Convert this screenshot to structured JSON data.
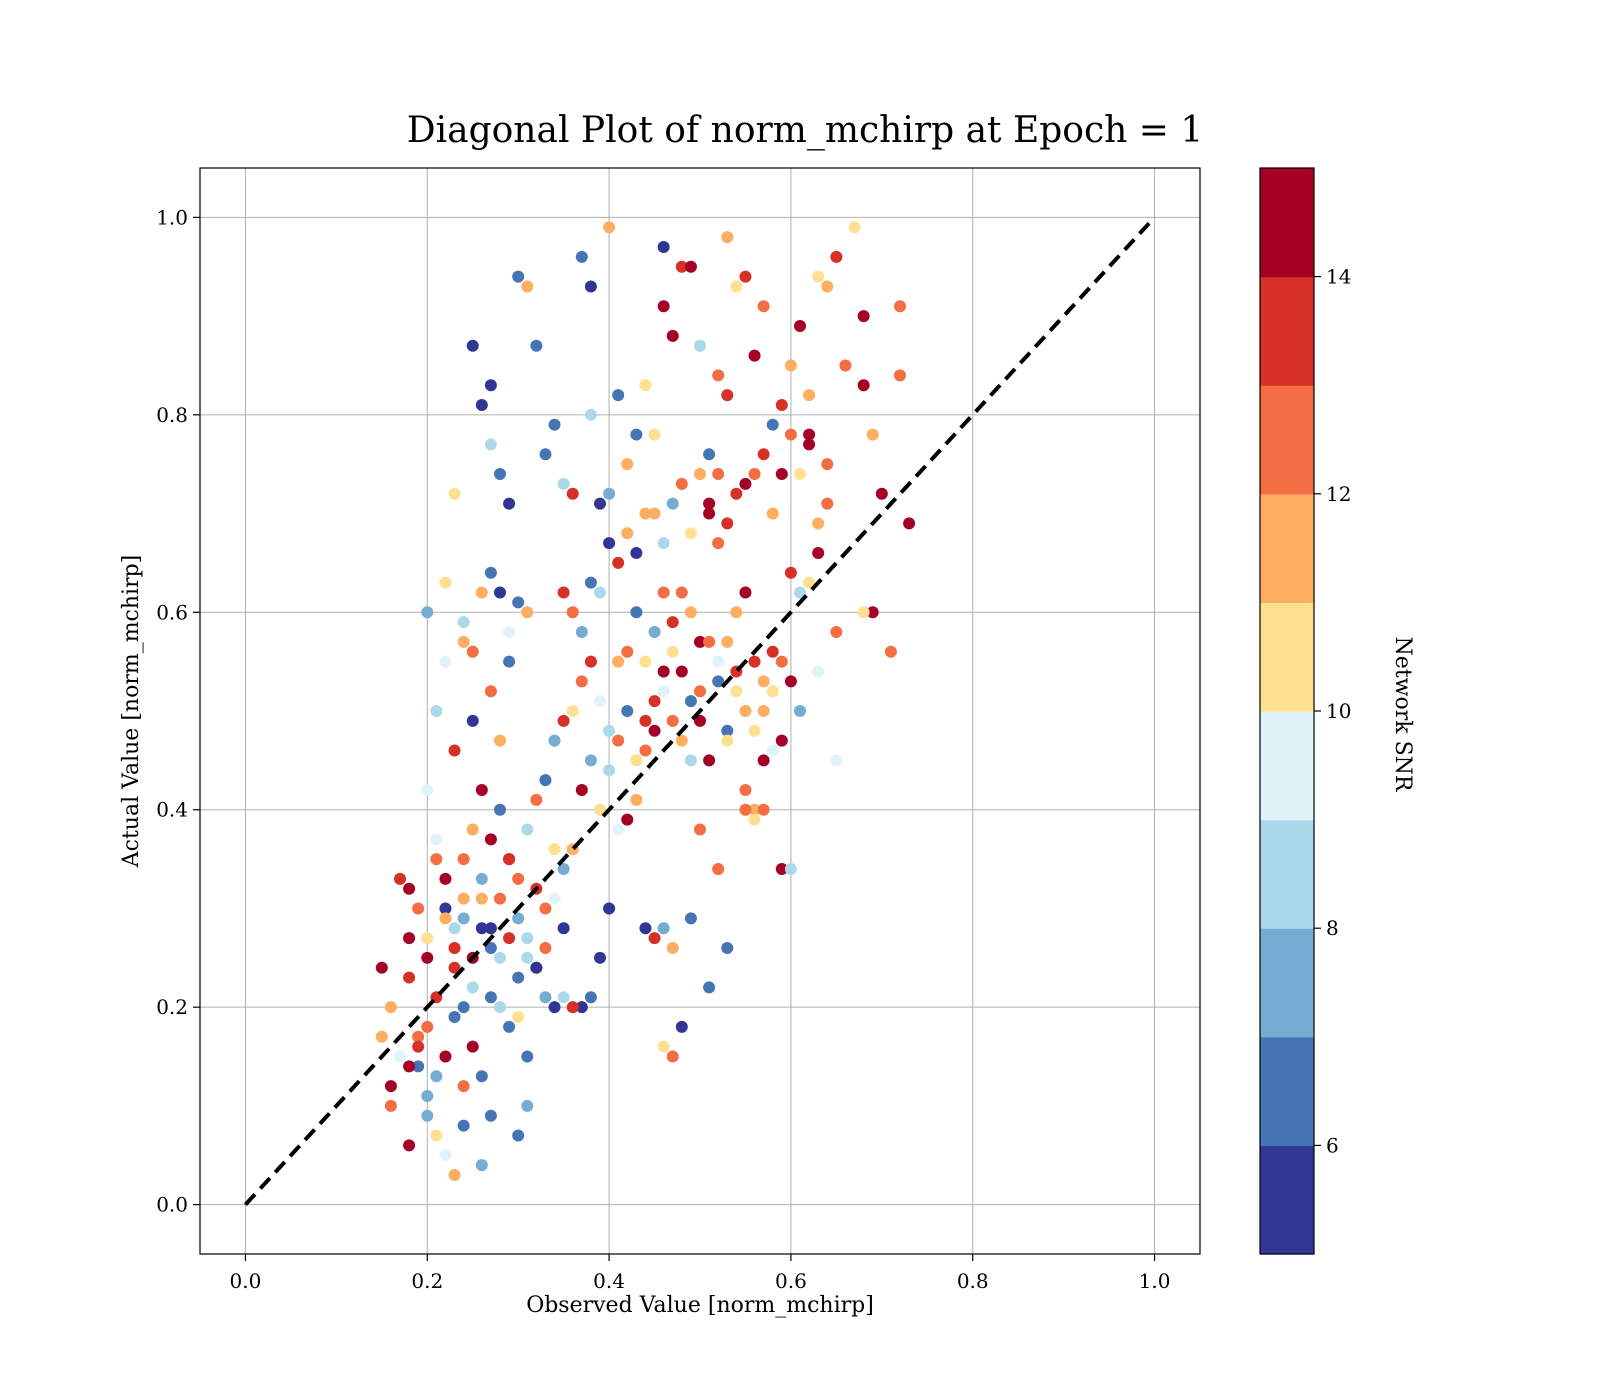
{
  "chart_data": {
    "type": "scatter",
    "title": "Diagonal Plot of norm_mchirp at Epoch = 1",
    "xlabel": "Observed Value [norm_mchirp]",
    "ylabel": "Actual Value [norm_mchirp]",
    "xlim": [
      -0.05,
      1.05
    ],
    "ylim": [
      -0.05,
      1.05
    ],
    "xticks": [
      "0.0",
      "0.2",
      "0.4",
      "0.6",
      "0.8",
      "1.0"
    ],
    "yticks": [
      "0.0",
      "0.2",
      "0.4",
      "0.6",
      "0.8",
      "1.0"
    ],
    "grid": true,
    "reference_line": {
      "style": "dashed",
      "color": "#000000",
      "from": [
        0,
        0
      ],
      "to": [
        1,
        1
      ]
    },
    "colorbar": {
      "label": "Network SNR",
      "colormap": "RdYlBu_r",
      "range": [
        5,
        15
      ],
      "ticks": [
        "6",
        "8",
        "10",
        "12",
        "14"
      ],
      "colors": [
        "#313695",
        "#4575b4",
        "#74add1",
        "#abd9e9",
        "#e0f3f8",
        "#fee090",
        "#fdae61",
        "#f46d43",
        "#d73027",
        "#a50026"
      ]
    },
    "points": [
      [
        0.15,
        0.24,
        14.5
      ],
      [
        0.16,
        0.12,
        14.2
      ],
      [
        0.17,
        0.33,
        13.5
      ],
      [
        0.18,
        0.27,
        14.8
      ],
      [
        0.19,
        0.17,
        12.5
      ],
      [
        0.2,
        0.25,
        14.0
      ],
      [
        0.21,
        0.21,
        13.2
      ],
      [
        0.22,
        0.3,
        5.5
      ],
      [
        0.23,
        0.28,
        8.0
      ],
      [
        0.24,
        0.2,
        6.2
      ],
      [
        0.16,
        0.2,
        11.5
      ],
      [
        0.17,
        0.15,
        10.5
      ],
      [
        0.18,
        0.23,
        13.8
      ],
      [
        0.19,
        0.14,
        6.5
      ],
      [
        0.2,
        0.18,
        12.0
      ],
      [
        0.21,
        0.37,
        9.5
      ],
      [
        0.22,
        0.33,
        14.5
      ],
      [
        0.23,
        0.26,
        13.0
      ],
      [
        0.24,
        0.31,
        11.0
      ],
      [
        0.25,
        0.22,
        8.5
      ],
      [
        0.26,
        0.28,
        5.0
      ],
      [
        0.27,
        0.26,
        6.8
      ],
      [
        0.28,
        0.31,
        12.2
      ],
      [
        0.29,
        0.35,
        5.2
      ],
      [
        0.3,
        0.29,
        7.2
      ],
      [
        0.31,
        0.25,
        8.8
      ],
      [
        0.32,
        0.24,
        14.2
      ],
      [
        0.33,
        0.3,
        12.5
      ],
      [
        0.34,
        0.36,
        10.2
      ],
      [
        0.35,
        0.21,
        8.2
      ],
      [
        0.18,
        0.06,
        14.9
      ],
      [
        0.2,
        0.09,
        7.0
      ],
      [
        0.21,
        0.07,
        10.2
      ],
      [
        0.22,
        0.05,
        9.0
      ],
      [
        0.23,
        0.03,
        11.8
      ],
      [
        0.24,
        0.08,
        6.2
      ],
      [
        0.26,
        0.04,
        7.5
      ],
      [
        0.27,
        0.09,
        6.0
      ],
      [
        0.3,
        0.07,
        6.3
      ],
      [
        0.31,
        0.1,
        7.9
      ],
      [
        0.2,
        0.42,
        9.5
      ],
      [
        0.21,
        0.5,
        8.2
      ],
      [
        0.22,
        0.55,
        9.9
      ],
      [
        0.23,
        0.46,
        13.2
      ],
      [
        0.24,
        0.57,
        11.5
      ],
      [
        0.25,
        0.49,
        5.5
      ],
      [
        0.26,
        0.42,
        14.5
      ],
      [
        0.27,
        0.52,
        12.5
      ],
      [
        0.28,
        0.47,
        11.0
      ],
      [
        0.29,
        0.55,
        6.5
      ],
      [
        0.2,
        0.6,
        7.2
      ],
      [
        0.22,
        0.63,
        10.5
      ],
      [
        0.24,
        0.59,
        8.0
      ],
      [
        0.25,
        0.56,
        12.0
      ],
      [
        0.26,
        0.62,
        11.0
      ],
      [
        0.27,
        0.64,
        6.0
      ],
      [
        0.28,
        0.62,
        5.5
      ],
      [
        0.29,
        0.58,
        9.2
      ],
      [
        0.3,
        0.61,
        6.8
      ],
      [
        0.31,
        0.6,
        11.2
      ],
      [
        0.23,
        0.72,
        10.0
      ],
      [
        0.25,
        0.87,
        5.5
      ],
      [
        0.26,
        0.81,
        5.0
      ],
      [
        0.27,
        0.83,
        5.2
      ],
      [
        0.27,
        0.77,
        8.8
      ],
      [
        0.28,
        0.74,
        6.0
      ],
      [
        0.29,
        0.71,
        5.5
      ],
      [
        0.3,
        0.94,
        6.0
      ],
      [
        0.31,
        0.93,
        11.5
      ],
      [
        0.32,
        0.87,
        6.5
      ],
      [
        0.33,
        0.76,
        6.0
      ],
      [
        0.34,
        0.79,
        6.3
      ],
      [
        0.35,
        0.73,
        8.0
      ],
      [
        0.36,
        0.72,
        13.8
      ],
      [
        0.37,
        0.96,
        6.2
      ],
      [
        0.38,
        0.93,
        5.2
      ],
      [
        0.38,
        0.8,
        8.5
      ],
      [
        0.39,
        0.71,
        5.8
      ],
      [
        0.4,
        0.72,
        7.5
      ],
      [
        0.4,
        0.99,
        11.5
      ],
      [
        0.41,
        0.82,
        6.2
      ],
      [
        0.42,
        0.75,
        11.0
      ],
      [
        0.43,
        0.78,
        6.8
      ],
      [
        0.44,
        0.83,
        10.5
      ],
      [
        0.45,
        0.78,
        10.8
      ],
      [
        0.46,
        0.97,
        5.2
      ],
      [
        0.46,
        0.91,
        14.5
      ],
      [
        0.47,
        0.88,
        14.0
      ],
      [
        0.48,
        0.95,
        13.5
      ],
      [
        0.49,
        0.95,
        14.2
      ],
      [
        0.5,
        0.87,
        8.5
      ],
      [
        0.51,
        0.76,
        6.0
      ],
      [
        0.52,
        0.84,
        12.5
      ],
      [
        0.53,
        0.98,
        11.8
      ],
      [
        0.53,
        0.82,
        13.2
      ],
      [
        0.54,
        0.93,
        10.2
      ],
      [
        0.55,
        0.94,
        13.0
      ],
      [
        0.56,
        0.86,
        14.5
      ],
      [
        0.57,
        0.91,
        12.8
      ],
      [
        0.58,
        0.79,
        6.3
      ],
      [
        0.59,
        0.81,
        13.5
      ],
      [
        0.6,
        0.85,
        11.8
      ],
      [
        0.61,
        0.89,
        14.5
      ],
      [
        0.62,
        0.82,
        11.5
      ],
      [
        0.63,
        0.94,
        10.2
      ],
      [
        0.64,
        0.93,
        11.8
      ],
      [
        0.65,
        0.96,
        13.5
      ],
      [
        0.66,
        0.85,
        12.8
      ],
      [
        0.67,
        0.99,
        10.5
      ],
      [
        0.68,
        0.83,
        14.5
      ],
      [
        0.68,
        0.9,
        14.8
      ],
      [
        0.69,
        0.78,
        11.2
      ],
      [
        0.7,
        0.72,
        14.2
      ],
      [
        0.72,
        0.84,
        12.5
      ],
      [
        0.72,
        0.91,
        12.5
      ],
      [
        0.73,
        0.69,
        14.9
      ],
      [
        0.71,
        0.56,
        12.5
      ],
      [
        0.69,
        0.6,
        14.8
      ],
      [
        0.68,
        0.6,
        10.2
      ],
      [
        0.65,
        0.58,
        12.8
      ],
      [
        0.64,
        0.71,
        12.0
      ],
      [
        0.63,
        0.66,
        14.0
      ],
      [
        0.62,
        0.77,
        14.5
      ],
      [
        0.61,
        0.62,
        8.2
      ],
      [
        0.6,
        0.64,
        13.2
      ],
      [
        0.59,
        0.55,
        12.5
      ],
      [
        0.58,
        0.52,
        10.8
      ],
      [
        0.57,
        0.53,
        11.5
      ],
      [
        0.56,
        0.48,
        10.2
      ],
      [
        0.55,
        0.62,
        14.8
      ],
      [
        0.54,
        0.6,
        11.0
      ],
      [
        0.53,
        0.57,
        11.8
      ],
      [
        0.52,
        0.67,
        12.2
      ],
      [
        0.51,
        0.71,
        14.5
      ],
      [
        0.5,
        0.57,
        14.8
      ],
      [
        0.49,
        0.6,
        11.8
      ],
      [
        0.48,
        0.62,
        12.5
      ],
      [
        0.47,
        0.59,
        13.5
      ],
      [
        0.46,
        0.54,
        14.2
      ],
      [
        0.45,
        0.51,
        13.8
      ],
      [
        0.44,
        0.46,
        12.5
      ],
      [
        0.43,
        0.41,
        11.5
      ],
      [
        0.42,
        0.39,
        14.5
      ],
      [
        0.41,
        0.38,
        9.5
      ],
      [
        0.4,
        0.3,
        5.2
      ],
      [
        0.39,
        0.25,
        5.5
      ],
      [
        0.38,
        0.21,
        6.8
      ],
      [
        0.37,
        0.2,
        5.8
      ],
      [
        0.36,
        0.2,
        13.2
      ],
      [
        0.35,
        0.28,
        5.5
      ],
      [
        0.34,
        0.2,
        5.2
      ],
      [
        0.33,
        0.21,
        7.0
      ],
      [
        0.32,
        0.24,
        5.0
      ],
      [
        0.31,
        0.15,
        6.2
      ],
      [
        0.3,
        0.19,
        10.8
      ],
      [
        0.29,
        0.18,
        6.5
      ],
      [
        0.28,
        0.2,
        8.0
      ],
      [
        0.27,
        0.21,
        6.0
      ],
      [
        0.26,
        0.13,
        6.2
      ],
      [
        0.25,
        0.16,
        14.2
      ],
      [
        0.24,
        0.12,
        12.5
      ],
      [
        0.23,
        0.19,
        6.0
      ],
      [
        0.22,
        0.15,
        14.8
      ],
      [
        0.21,
        0.13,
        7.8
      ],
      [
        0.2,
        0.11,
        7.5
      ],
      [
        0.19,
        0.16,
        13.5
      ],
      [
        0.18,
        0.14,
        14.5
      ],
      [
        0.17,
        0.15,
        9.2
      ],
      [
        0.16,
        0.1,
        12.5
      ],
      [
        0.15,
        0.17,
        11.5
      ],
      [
        0.24,
        0.35,
        12.5
      ],
      [
        0.25,
        0.38,
        11.0
      ],
      [
        0.26,
        0.33,
        7.0
      ],
      [
        0.27,
        0.37,
        14.0
      ],
      [
        0.28,
        0.4,
        6.8
      ],
      [
        0.29,
        0.35,
        13.2
      ],
      [
        0.3,
        0.33,
        12.5
      ],
      [
        0.31,
        0.38,
        8.5
      ],
      [
        0.32,
        0.41,
        12.2
      ],
      [
        0.33,
        0.43,
        6.0
      ],
      [
        0.34,
        0.47,
        7.5
      ],
      [
        0.35,
        0.49,
        13.5
      ],
      [
        0.36,
        0.5,
        10.2
      ],
      [
        0.37,
        0.53,
        12.0
      ],
      [
        0.38,
        0.55,
        13.0
      ],
      [
        0.39,
        0.51,
        9.5
      ],
      [
        0.4,
        0.48,
        8.2
      ],
      [
        0.41,
        0.55,
        11.8
      ],
      [
        0.42,
        0.56,
        12.5
      ],
      [
        0.43,
        0.6,
        6.8
      ],
      [
        0.44,
        0.55,
        10.5
      ],
      [
        0.45,
        0.58,
        7.5
      ],
      [
        0.46,
        0.62,
        12.2
      ],
      [
        0.47,
        0.56,
        10.8
      ],
      [
        0.48,
        0.54,
        14.0
      ],
      [
        0.49,
        0.51,
        6.2
      ],
      [
        0.5,
        0.49,
        14.5
      ],
      [
        0.51,
        0.57,
        12.8
      ],
      [
        0.52,
        0.55,
        9.5
      ],
      [
        0.53,
        0.48,
        6.3
      ],
      [
        0.54,
        0.52,
        10.0
      ],
      [
        0.55,
        0.5,
        11.5
      ],
      [
        0.56,
        0.55,
        13.0
      ],
      [
        0.57,
        0.45,
        14.5
      ],
      [
        0.58,
        0.46,
        9.2
      ],
      [
        0.59,
        0.47,
        14.8
      ],
      [
        0.6,
        0.53,
        14.6
      ],
      [
        0.61,
        0.5,
        7.5
      ],
      [
        0.62,
        0.63,
        10.8
      ],
      [
        0.63,
        0.54,
        9.8
      ],
      [
        0.35,
        0.62,
        13.0
      ],
      [
        0.36,
        0.6,
        12.0
      ],
      [
        0.37,
        0.58,
        7.5
      ],
      [
        0.38,
        0.63,
        6.2
      ],
      [
        0.39,
        0.62,
        8.5
      ],
      [
        0.4,
        0.67,
        5.5
      ],
      [
        0.41,
        0.65,
        13.5
      ],
      [
        0.42,
        0.68,
        11.0
      ],
      [
        0.43,
        0.66,
        5.2
      ],
      [
        0.44,
        0.7,
        11.5
      ],
      [
        0.45,
        0.7,
        11.8
      ],
      [
        0.46,
        0.67,
        8.3
      ],
      [
        0.47,
        0.71,
        7.5
      ],
      [
        0.48,
        0.73,
        12.2
      ],
      [
        0.49,
        0.68,
        10.5
      ],
      [
        0.5,
        0.74,
        11.5
      ],
      [
        0.51,
        0.7,
        14.5
      ],
      [
        0.52,
        0.74,
        12.2
      ],
      [
        0.53,
        0.69,
        13.2
      ],
      [
        0.54,
        0.72,
        13.8
      ],
      [
        0.55,
        0.73,
        14.2
      ],
      [
        0.56,
        0.74,
        12.5
      ],
      [
        0.57,
        0.76,
        13.0
      ],
      [
        0.58,
        0.7,
        11.5
      ],
      [
        0.59,
        0.74,
        14.5
      ],
      [
        0.6,
        0.78,
        12.5
      ],
      [
        0.61,
        0.74,
        10.8
      ],
      [
        0.62,
        0.78,
        14.5
      ],
      [
        0.63,
        0.69,
        11.0
      ],
      [
        0.64,
        0.75,
        12.2
      ],
      [
        0.18,
        0.32,
        14.5
      ],
      [
        0.19,
        0.3,
        12.8
      ],
      [
        0.2,
        0.27,
        10.5
      ],
      [
        0.21,
        0.35,
        12.2
      ],
      [
        0.22,
        0.29,
        11.5
      ],
      [
        0.23,
        0.24,
        13.8
      ],
      [
        0.24,
        0.29,
        7.5
      ],
      [
        0.25,
        0.25,
        14.2
      ],
      [
        0.26,
        0.31,
        11.8
      ],
      [
        0.27,
        0.28,
        5.5
      ],
      [
        0.28,
        0.25,
        8.5
      ],
      [
        0.29,
        0.27,
        13.5
      ],
      [
        0.3,
        0.23,
        6.5
      ],
      [
        0.31,
        0.27,
        8.0
      ],
      [
        0.32,
        0.32,
        13.5
      ],
      [
        0.33,
        0.26,
        12.2
      ],
      [
        0.34,
        0.31,
        9.5
      ],
      [
        0.35,
        0.34,
        7.8
      ],
      [
        0.36,
        0.36,
        11.8
      ],
      [
        0.37,
        0.42,
        14.2
      ],
      [
        0.38,
        0.45,
        7.2
      ],
      [
        0.39,
        0.4,
        10.8
      ],
      [
        0.4,
        0.44,
        8.2
      ],
      [
        0.41,
        0.47,
        12.5
      ],
      [
        0.42,
        0.5,
        6.5
      ],
      [
        0.43,
        0.45,
        10.0
      ],
      [
        0.44,
        0.49,
        13.5
      ],
      [
        0.45,
        0.48,
        14.5
      ],
      [
        0.46,
        0.52,
        9.0
      ],
      [
        0.47,
        0.49,
        12.8
      ],
      [
        0.48,
        0.47,
        11.0
      ],
      [
        0.49,
        0.45,
        8.8
      ],
      [
        0.5,
        0.52,
        12.8
      ],
      [
        0.51,
        0.45,
        14.0
      ],
      [
        0.52,
        0.53,
        6.2
      ],
      [
        0.53,
        0.47,
        10.2
      ],
      [
        0.54,
        0.54,
        13.2
      ],
      [
        0.55,
        0.42,
        12.2
      ],
      [
        0.56,
        0.4,
        11.0
      ],
      [
        0.57,
        0.4,
        12.8
      ],
      [
        0.44,
        0.28,
        5.5
      ],
      [
        0.45,
        0.27,
        13.5
      ],
      [
        0.46,
        0.28,
        7.0
      ],
      [
        0.47,
        0.26,
        11.8
      ],
      [
        0.48,
        0.18,
        5.2
      ],
      [
        0.46,
        0.16,
        10.8
      ],
      [
        0.47,
        0.15,
        12.8
      ],
      [
        0.49,
        0.29,
        6.8
      ],
      [
        0.5,
        0.38,
        12.5
      ],
      [
        0.51,
        0.22,
        6.8
      ],
      [
        0.53,
        0.26,
        6.8
      ],
      [
        0.52,
        0.34,
        12.0
      ],
      [
        0.55,
        0.4,
        12.5
      ],
      [
        0.56,
        0.39,
        10.5
      ],
      [
        0.57,
        0.5,
        11.5
      ],
      [
        0.58,
        0.56,
        13.2
      ],
      [
        0.59,
        0.34,
        14.5
      ],
      [
        0.6,
        0.34,
        8.0
      ],
      [
        0.65,
        0.45,
        9.5
      ],
      [
        0.63,
        0.54,
        9.0
      ]
    ]
  }
}
